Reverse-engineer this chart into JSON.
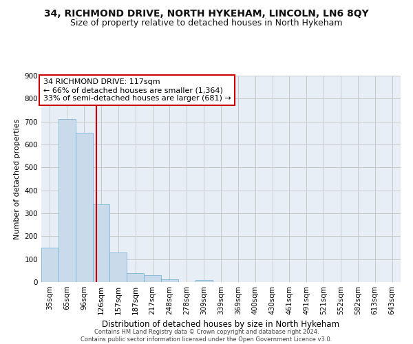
{
  "title": "34, RICHMOND DRIVE, NORTH HYKEHAM, LINCOLN, LN6 8QY",
  "subtitle": "Size of property relative to detached houses in North Hykeham",
  "xlabel": "Distribution of detached houses by size in North Hykeham",
  "ylabel": "Number of detached properties",
  "bar_color": "#c9daea",
  "bar_edge_color": "#6aaed6",
  "background_color": "#e8eef6",
  "grid_color": "#c8c8c8",
  "categories": [
    "35sqm",
    "65sqm",
    "96sqm",
    "126sqm",
    "157sqm",
    "187sqm",
    "217sqm",
    "248sqm",
    "278sqm",
    "309sqm",
    "339sqm",
    "369sqm",
    "400sqm",
    "430sqm",
    "461sqm",
    "491sqm",
    "521sqm",
    "552sqm",
    "582sqm",
    "613sqm",
    "643sqm"
  ],
  "values": [
    150,
    710,
    650,
    340,
    130,
    40,
    30,
    12,
    0,
    10,
    0,
    0,
    0,
    0,
    0,
    0,
    0,
    0,
    0,
    0,
    0
  ],
  "ylim": [
    0,
    900
  ],
  "yticks": [
    0,
    100,
    200,
    300,
    400,
    500,
    600,
    700,
    800,
    900
  ],
  "vline_color": "#cc0000",
  "annotation_text": "34 RICHMOND DRIVE: 117sqm\n← 66% of detached houses are smaller (1,364)\n33% of semi-detached houses are larger (681) →",
  "annotation_box_color": "#ffffff",
  "annotation_box_edge": "#cc0000",
  "footer": "Contains HM Land Registry data © Crown copyright and database right 2024.\nContains public sector information licensed under the Open Government Licence v3.0.",
  "title_fontsize": 10,
  "subtitle_fontsize": 9,
  "annotation_fontsize": 8,
  "ylabel_fontsize": 8,
  "xlabel_fontsize": 8.5,
  "tick_fontsize": 7.5,
  "footer_fontsize": 6
}
